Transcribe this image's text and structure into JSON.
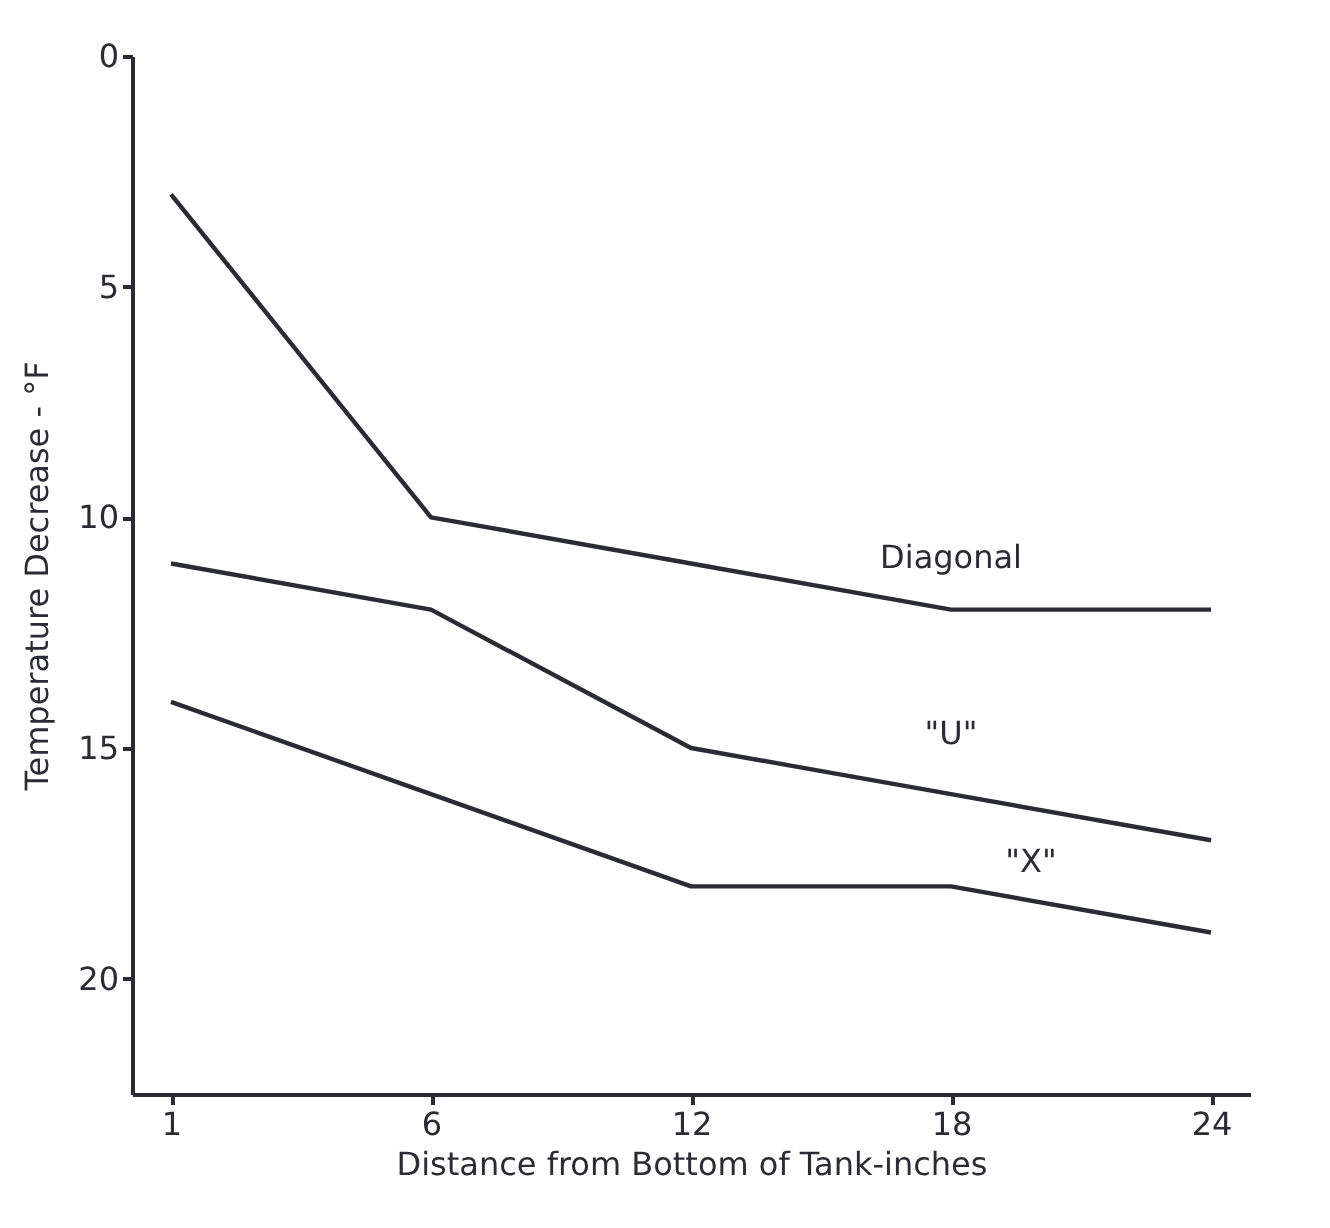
{
  "chart_data": {
    "type": "line",
    "xlabel": "Distance from Bottom of Tank-inches",
    "ylabel": "Temperature Decrease - °F",
    "categories": [
      "1",
      "6",
      "12",
      "18",
      "24"
    ],
    "series": [
      {
        "name": "Diagonal",
        "color": "#2b2b33",
        "values": [
          3,
          10,
          11,
          12,
          12
        ]
      },
      {
        "name": "\"U\"",
        "color": "#2b2b33",
        "values": [
          11,
          12,
          15,
          16,
          17
        ]
      },
      {
        "name": "\"X\"",
        "color": "#2b2b33",
        "values": [
          14,
          16,
          18,
          18,
          19
        ]
      }
    ],
    "ylim": [
      22.5,
      0
    ],
    "yticks": [
      0,
      5,
      10,
      15,
      20
    ],
    "grid": false,
    "legend": false,
    "marker": "none",
    "line_style": "solid"
  }
}
